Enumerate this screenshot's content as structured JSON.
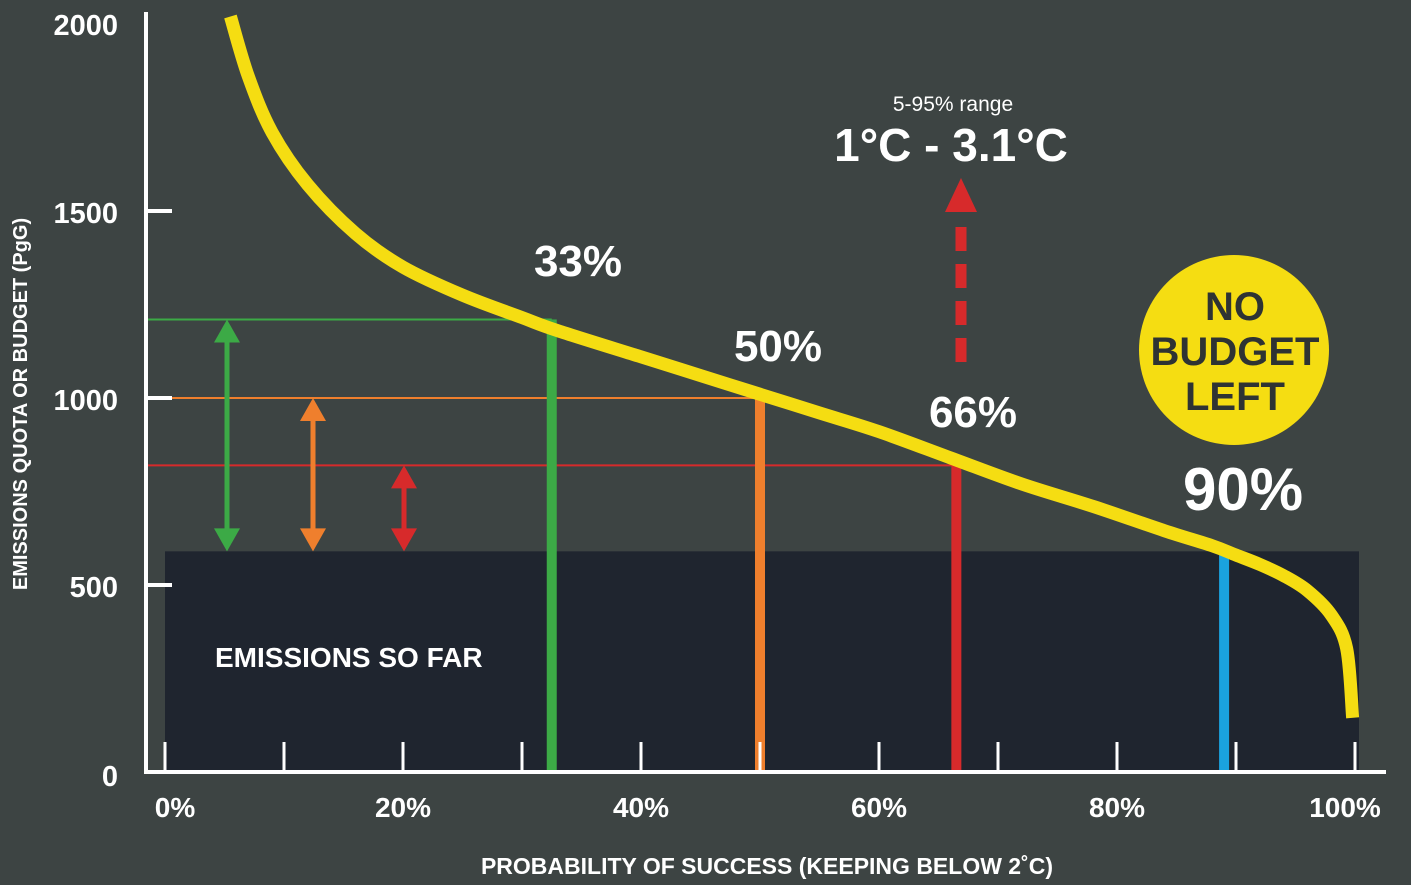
{
  "chart_data": {
    "type": "line",
    "title": "",
    "xlabel": "PROBABILITY OF SUCCESS (KEEPING BELOW 2˚C)",
    "ylabel": "EMISSIONS QUOTA OR BUDGET (PgG)",
    "xlim": [
      0,
      100
    ],
    "ylim": [
      0,
      2000
    ],
    "x_tick_labels": [
      "0%",
      "20%",
      "40%",
      "60%",
      "80%",
      "100%"
    ],
    "x_ticks": [
      0,
      20,
      40,
      60,
      80,
      100
    ],
    "y_ticks": [
      0,
      500,
      1000,
      1500,
      2000
    ],
    "y_tick_labels": [
      "0",
      "500",
      "1000",
      "1500",
      "2000"
    ],
    "grid": false,
    "series": [
      {
        "color": "#f5dd12",
        "x": [
          5.5,
          7,
          9,
          12,
          16,
          20,
          25,
          30,
          33,
          40,
          45,
          50,
          55,
          60,
          66,
          72,
          78,
          84,
          88,
          90,
          92,
          94,
          96,
          98,
          99.3,
          99.8
        ],
        "y": [
          2020,
          1860,
          1710,
          1570,
          1440,
          1350,
          1275,
          1215,
          1180,
          1110,
          1060,
          1010,
          960,
          910,
          840,
          770,
          710,
          645,
          605,
          580,
          555,
          525,
          485,
          420,
          330,
          145
        ]
      }
    ],
    "emissions_so_far": {
      "label": "EMISSIONS SO FAR",
      "value": 590,
      "color": "#1f252f"
    },
    "thresholds": [
      {
        "label": "33%",
        "x": 32.5,
        "budget": 1210,
        "color": "#3caa46"
      },
      {
        "label": "50%",
        "x": 50,
        "budget": 1000,
        "color": "#ef7f2d"
      },
      {
        "label": "66%",
        "x": 66.5,
        "budget": 820,
        "color": "#d72a2b"
      },
      {
        "label": "90%",
        "x": 89,
        "budget": 590,
        "color": "#1aa3df"
      }
    ],
    "annotations": {
      "range_label": "5-95% range",
      "range_value": "1°C - 3.1°C",
      "no_budget": [
        "NO",
        "BUDGET",
        "LEFT"
      ]
    },
    "colors": {
      "background": "#3d4443",
      "curve": "#f5dd12",
      "axis": "#ffffff",
      "badge": "#f5dd12",
      "badge_text": "#2e3333",
      "range_arrow": "#d72a2b"
    }
  }
}
